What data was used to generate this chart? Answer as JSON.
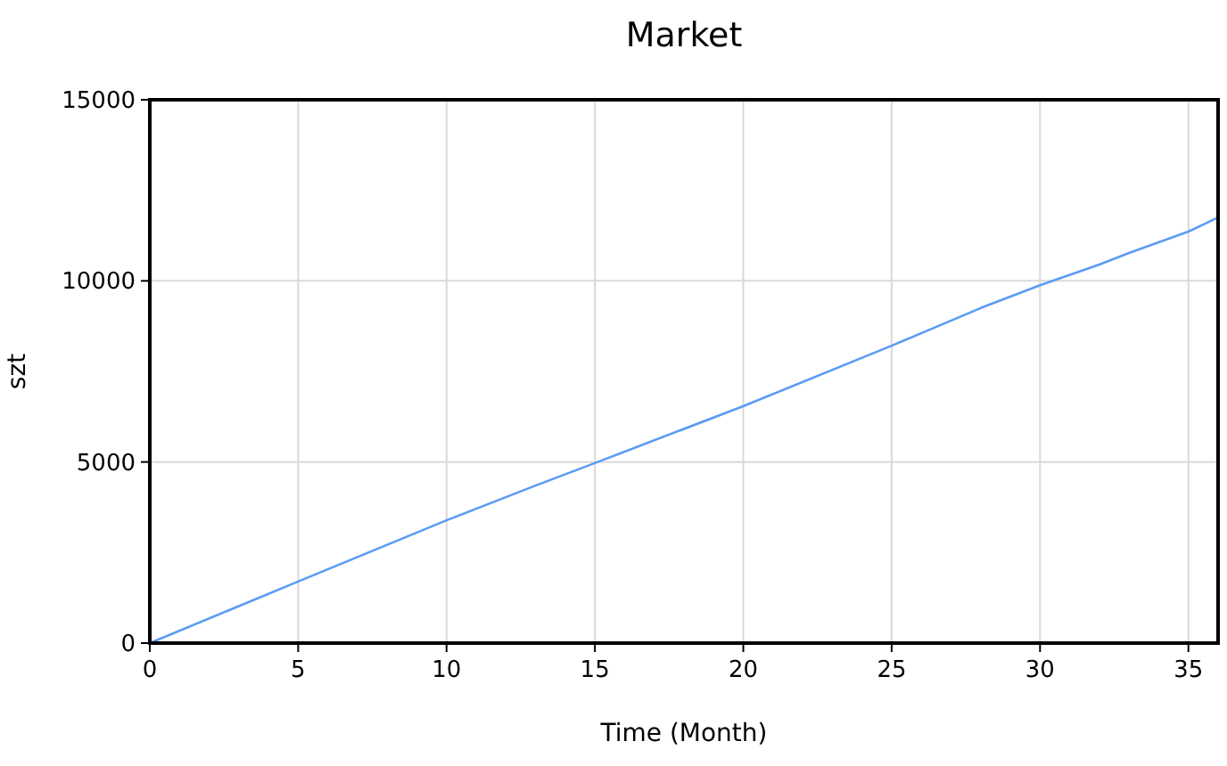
{
  "chart_data": {
    "type": "line",
    "title": "Market",
    "xlabel": "Time (Month)",
    "ylabel": "szt",
    "x": [
      0,
      5,
      10,
      13,
      15,
      20,
      25,
      28,
      30,
      32,
      33,
      35,
      36
    ],
    "series": [
      {
        "color": "#5b9bf5",
        "values": [
          0,
          1700,
          3390,
          4350,
          4970,
          6540,
          8210,
          9250,
          9880,
          10450,
          10770,
          11360,
          11750
        ]
      }
    ],
    "xlim": [
      0,
      36
    ],
    "xticks": [
      0,
      5,
      10,
      15,
      20,
      25,
      30,
      35
    ],
    "ylim": [
      0,
      15000
    ],
    "yticks": [
      0,
      5000,
      10000,
      15000
    ],
    "grid": true,
    "marker": "none",
    "line_style": "solid"
  }
}
